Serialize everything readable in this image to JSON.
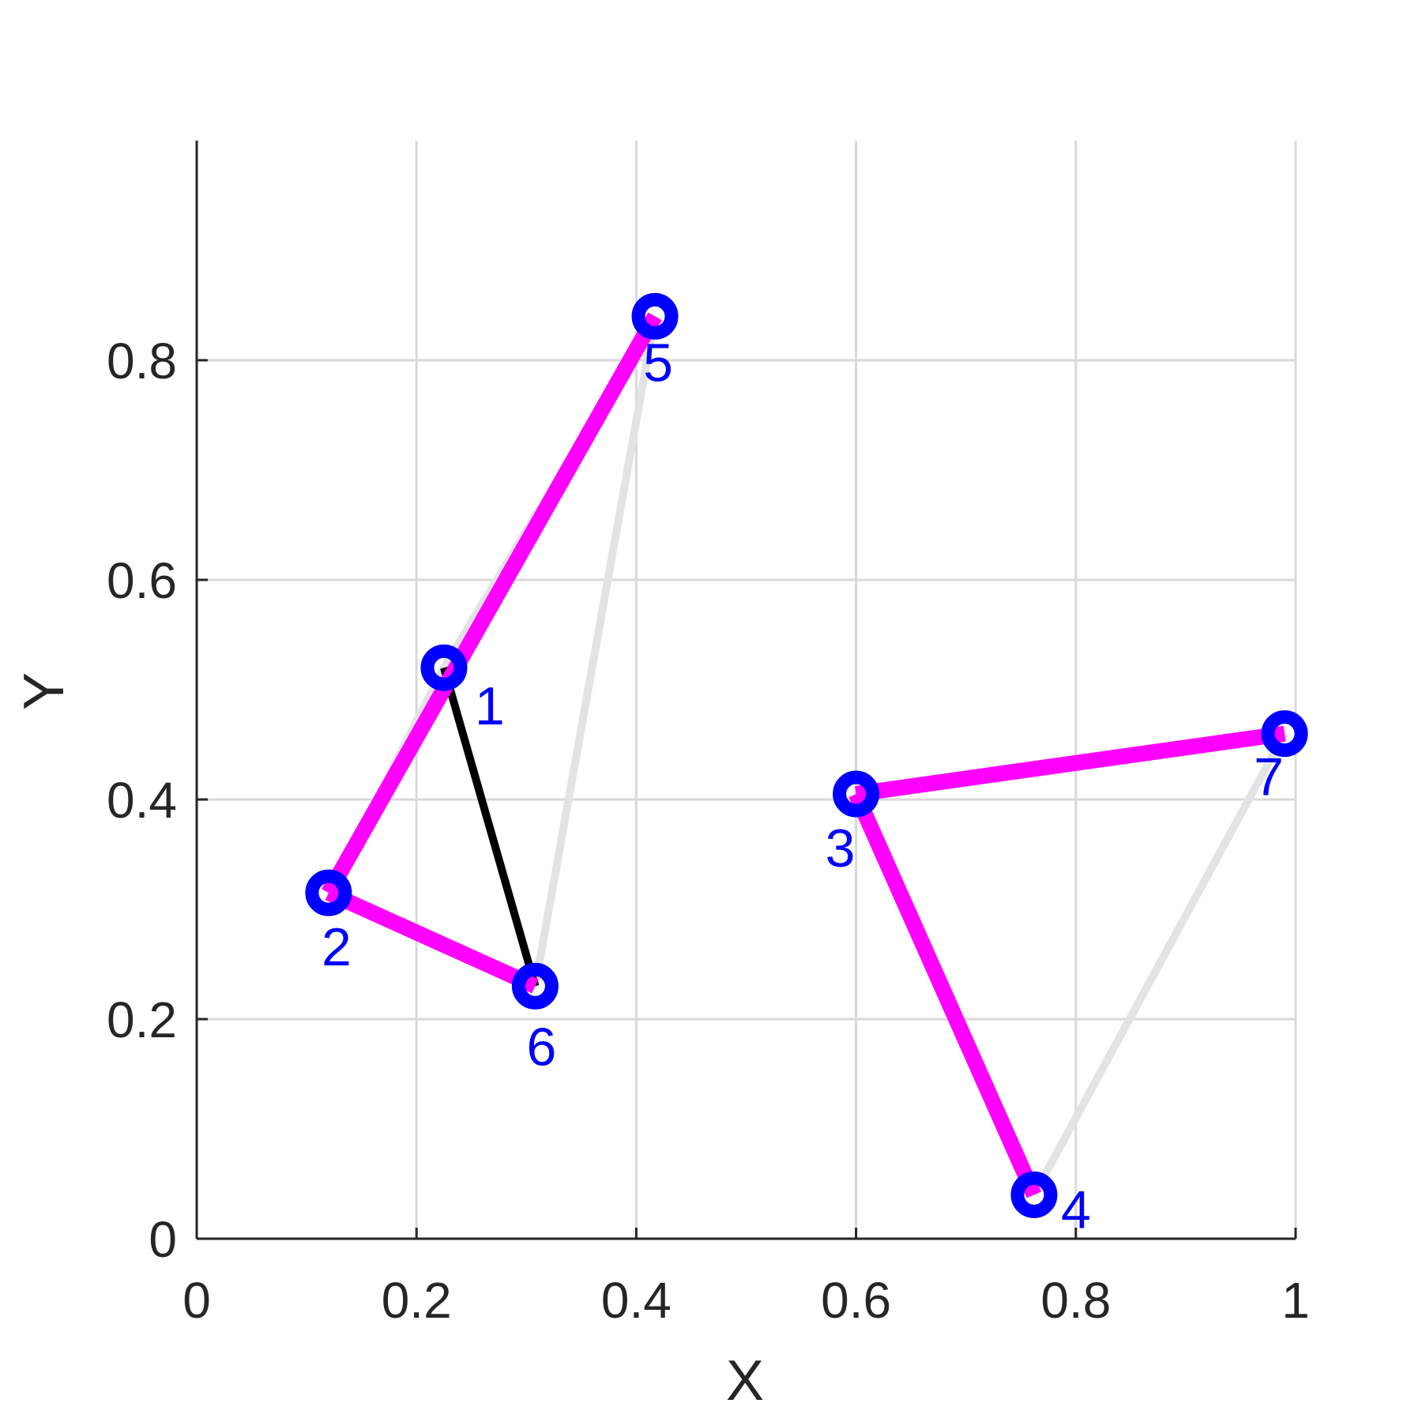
{
  "chart_data": {
    "type": "scatter",
    "title": "",
    "xlabel": "X",
    "ylabel": "Y",
    "xlim": [
      0,
      1
    ],
    "ylim": [
      0,
      1
    ],
    "grid": true,
    "xticks": [
      0,
      0.2,
      0.4,
      0.6,
      0.8,
      1
    ],
    "xtick_labels": [
      "0",
      "0.2",
      "0.4",
      "0.6",
      "0.8",
      "1"
    ],
    "yticks": [
      0,
      0.2,
      0.4,
      0.6,
      0.8
    ],
    "ytick_labels": [
      "0",
      "0.2",
      "0.4",
      "0.6",
      "0.8"
    ],
    "nodes": [
      {
        "id": "1",
        "x": 0.225,
        "y": 0.52
      },
      {
        "id": "2",
        "x": 0.12,
        "y": 0.315
      },
      {
        "id": "3",
        "x": 0.6,
        "y": 0.405
      },
      {
        "id": "4",
        "x": 0.762,
        "y": 0.04
      },
      {
        "id": "5",
        "x": 0.417,
        "y": 0.84
      },
      {
        "id": "6",
        "x": 0.308,
        "y": 0.23
      },
      {
        "id": "7",
        "x": 0.99,
        "y": 0.46
      }
    ],
    "edges_gray": [
      [
        "1",
        "5"
      ],
      [
        "1",
        "2"
      ],
      [
        "5",
        "6"
      ],
      [
        "4",
        "7"
      ]
    ],
    "edges_black": [
      [
        "1",
        "6"
      ]
    ],
    "edges_magenta": [
      [
        "2",
        "5"
      ],
      [
        "2",
        "6"
      ],
      [
        "3",
        "7"
      ],
      [
        "3",
        "4"
      ]
    ],
    "colors": {
      "gray_edge": "#e3e3e3",
      "black_edge": "#000000",
      "magenta_edge": "#ff00ff",
      "node": "#0000ff",
      "grid": "#d9d9d9",
      "axis": "#262626"
    }
  }
}
